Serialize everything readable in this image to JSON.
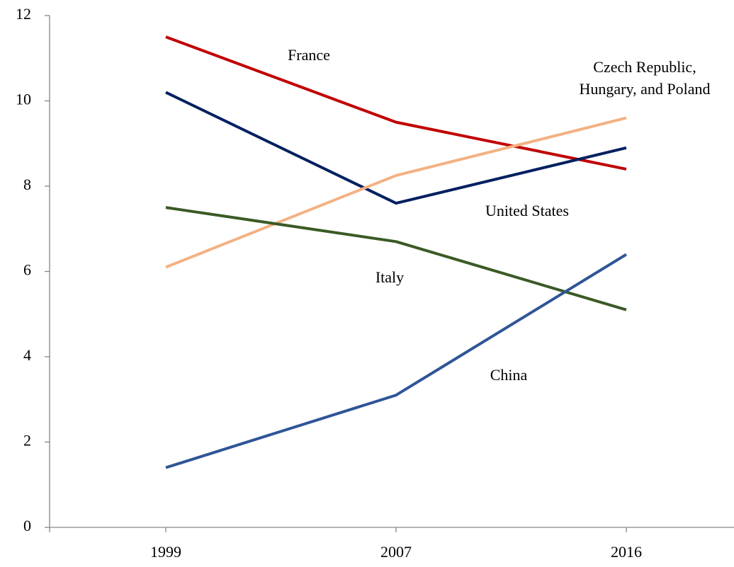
{
  "chart_data": {
    "type": "line",
    "categories": [
      "1999",
      "2007",
      "2016"
    ],
    "ylim": [
      0,
      12
    ],
    "yticks": [
      0,
      2,
      4,
      6,
      8,
      10,
      12
    ],
    "grid": false,
    "series": [
      {
        "name": [
          "France"
        ],
        "color": "#c00000",
        "values": [
          11.5,
          9.5,
          8.4
        ]
      },
      {
        "name": [
          "United States"
        ],
        "color": "#002060",
        "values": [
          10.2,
          7.6,
          8.9
        ]
      },
      {
        "name": [
          "Czech Republic,",
          "Hungary, and Poland"
        ],
        "color": "#f4b183",
        "values": [
          6.1,
          8.25,
          9.6
        ]
      },
      {
        "name": [
          "Italy"
        ],
        "color": "#3b5a26",
        "values": [
          7.5,
          6.7,
          5.1
        ]
      },
      {
        "name": [
          "China"
        ],
        "color": "#2f5597",
        "values": [
          1.4,
          3.1,
          6.4
        ]
      }
    ]
  }
}
